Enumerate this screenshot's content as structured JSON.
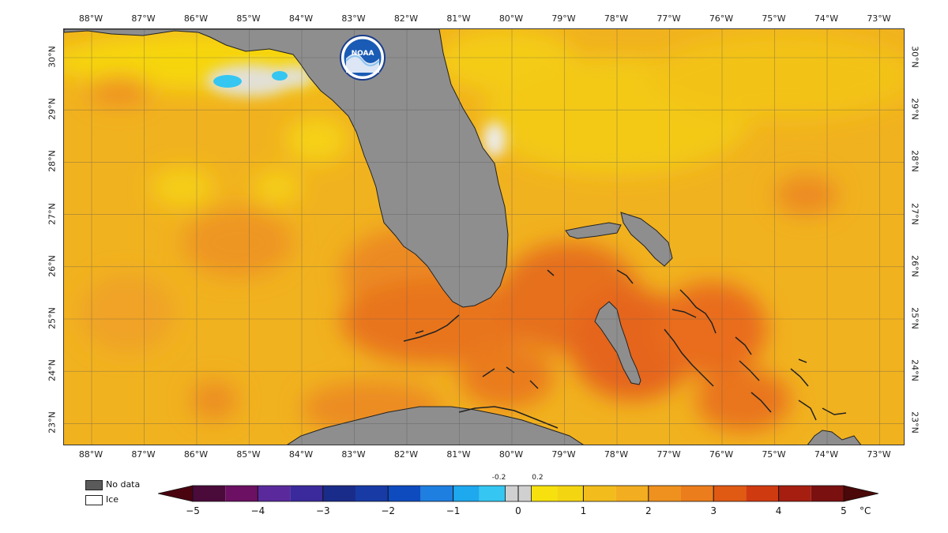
{
  "map": {
    "longitude_labels": [
      "88°W",
      "87°W",
      "86°W",
      "85°W",
      "84°W",
      "83°W",
      "82°W",
      "81°W",
      "80°W",
      "79°W",
      "78°W",
      "77°W",
      "76°W",
      "75°W",
      "74°W",
      "73°W"
    ],
    "latitude_labels": [
      "30°N",
      "29°N",
      "28°N",
      "27°N",
      "26°N",
      "25°N",
      "24°N",
      "23°N"
    ],
    "ocean_base_color": "#f2b51c",
    "land_color": "#8e8e8e",
    "no_data_color": "#5a5a5a",
    "ice_color": "#ffffff",
    "logo": {
      "text": "NOAA",
      "icon": "noaa-logo-icon"
    }
  },
  "legend": {
    "no_data_label": "No data",
    "ice_label": "Ice",
    "colorbar_ticks": [
      "−5",
      "−4",
      "−3",
      "−2",
      "−1",
      "0",
      "1",
      "2",
      "3",
      "4",
      "5"
    ],
    "small_ticks": [
      "-0.2",
      "0.2"
    ],
    "unit": "°C",
    "colors": [
      "#4a0410",
      "#6b1062",
      "#4a2a9c",
      "#1a2c8a",
      "#0e4bbf",
      "#1e8ee8",
      "#35c6f2",
      "#d0d0d0",
      "#f6e10f",
      "#f4c21a",
      "#f2a420",
      "#ef7d1f",
      "#e04a12",
      "#b51f10",
      "#7e1010",
      "#4a0808"
    ]
  }
}
